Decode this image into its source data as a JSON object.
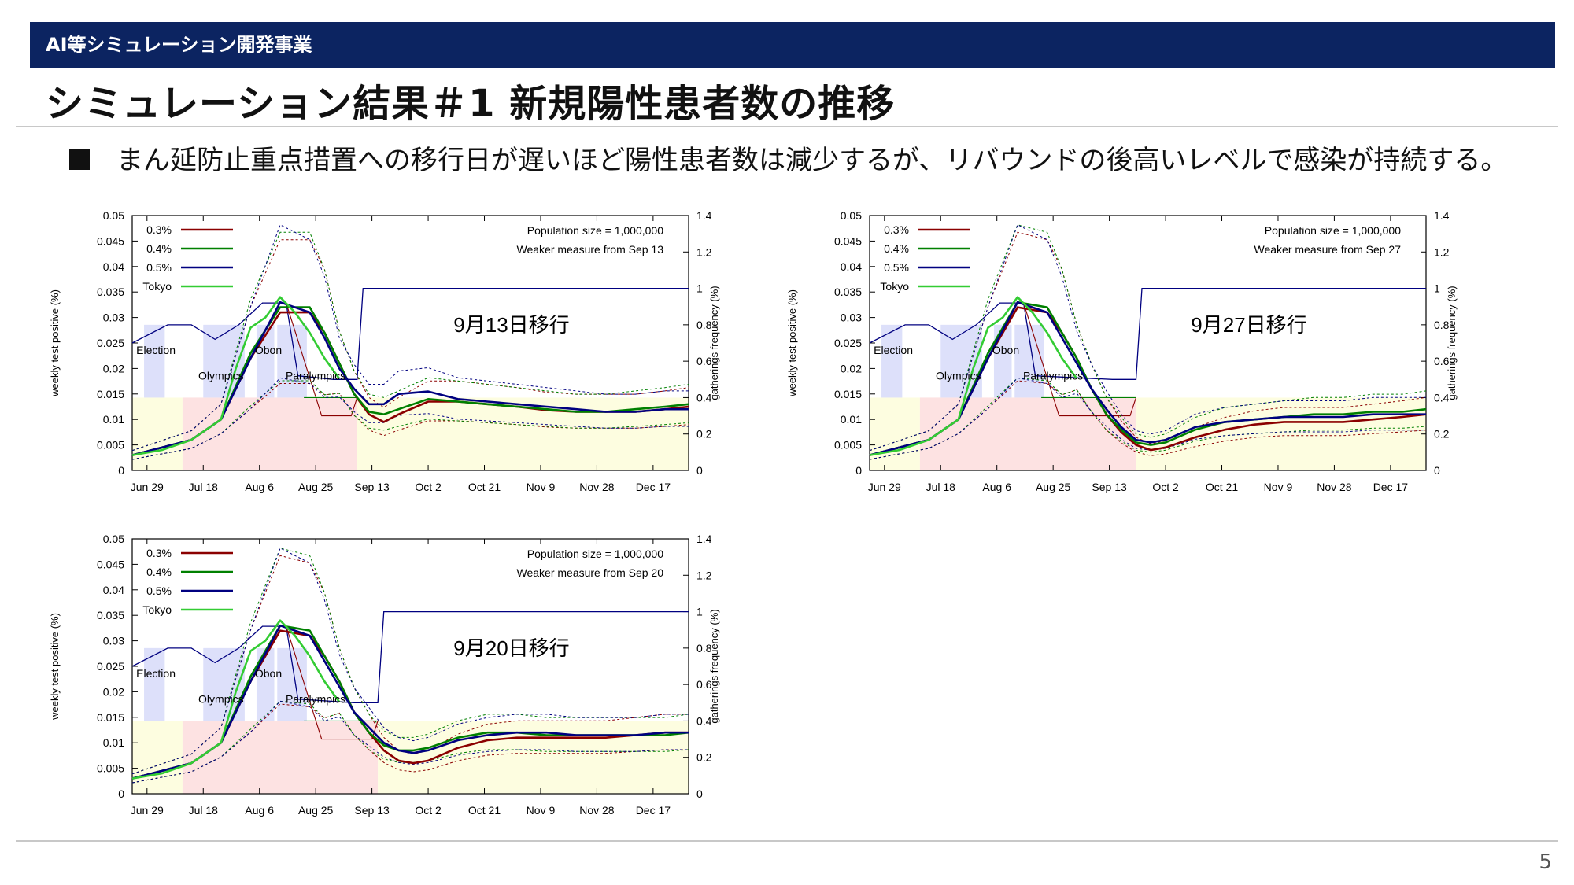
{
  "header": {
    "banner": "AI等シミュレーション開発事業",
    "title": "シミュレーション結果＃1 新規陽性患者数の推移",
    "bullet": "まん延防止重点措置への移行日が遅いほど陽性患者数は減少するが、リバウンドの後高いレベルで感染が持続する。"
  },
  "footer": {
    "page_number": "5"
  },
  "colors": {
    "banner_bg": "#0c2461",
    "s03": "#8b0000",
    "s04": "#008000",
    "s05": "#000080",
    "tokyo": "#33cc33",
    "event_band": "#dde0fa",
    "weak_band": "#fdfde0",
    "strong_band": "#fde2e2"
  },
  "chart_data": [
    {
      "type": "line",
      "annotation": "9月13日移行",
      "info_lines": [
        "Population size = 1,000,000",
        "Weaker measure from Sep 13"
      ],
      "ylabel": "weekly test positive (%)",
      "y2label": "gatherings frequency (%)",
      "x_ticks": [
        "Jun 29",
        "Jul 18",
        "Aug 6",
        "Aug 25",
        "Sep 13",
        "Oct 2",
        "Oct 21",
        "Nov 9",
        "Nov 28",
        "Dec 17"
      ],
      "ylim": [
        0,
        0.05
      ],
      "y_ticks": [
        "0",
        "0.005",
        "0.01",
        "0.015",
        "0.02",
        "0.025",
        "0.03",
        "0.035",
        "0.04",
        "0.045",
        "0.05"
      ],
      "y2lim": [
        0,
        1.4
      ],
      "y2_ticks": [
        "0",
        "0.2",
        "0.4",
        "0.6",
        "0.8",
        "1",
        "1.2",
        "1.4"
      ],
      "events": [
        "Election",
        "Olympics",
        "Obon",
        "Paralympics"
      ],
      "switch_day": 76,
      "series": [
        {
          "name": "0.3%",
          "x": [
            0,
            20,
            30,
            40,
            50,
            60,
            65,
            70,
            75,
            80,
            85,
            90,
            100,
            110,
            120,
            130,
            140,
            150,
            160,
            170,
            180,
            188
          ],
          "y": [
            0.003,
            0.006,
            0.01,
            0.022,
            0.031,
            0.031,
            0.027,
            0.021,
            0.015,
            0.011,
            0.0095,
            0.011,
            0.0135,
            0.0135,
            0.013,
            0.0125,
            0.0118,
            0.0115,
            0.0115,
            0.0115,
            0.012,
            0.0125
          ]
        },
        {
          "name": "0.4%",
          "x": [
            0,
            20,
            30,
            40,
            50,
            60,
            65,
            70,
            75,
            80,
            85,
            90,
            100,
            110,
            120,
            130,
            140,
            150,
            160,
            170,
            180,
            188
          ],
          "y": [
            0.003,
            0.006,
            0.01,
            0.023,
            0.032,
            0.032,
            0.027,
            0.021,
            0.015,
            0.0115,
            0.011,
            0.012,
            0.014,
            0.0135,
            0.013,
            0.0125,
            0.012,
            0.0115,
            0.0115,
            0.012,
            0.0125,
            0.013
          ]
        },
        {
          "name": "0.5%",
          "x": [
            0,
            20,
            30,
            40,
            50,
            60,
            65,
            70,
            75,
            80,
            85,
            90,
            100,
            110,
            120,
            130,
            140,
            150,
            160,
            170,
            180,
            188
          ],
          "y": [
            0.003,
            0.006,
            0.01,
            0.022,
            0.033,
            0.031,
            0.026,
            0.02,
            0.016,
            0.013,
            0.013,
            0.015,
            0.0155,
            0.014,
            0.0135,
            0.013,
            0.0125,
            0.012,
            0.0115,
            0.0115,
            0.012,
            0.012
          ]
        },
        {
          "name": "Tokyo",
          "x": [
            0,
            10,
            20,
            30,
            35,
            40,
            45,
            50,
            55,
            60,
            65,
            70
          ],
          "y": [
            0.003,
            0.004,
            0.006,
            0.01,
            0.02,
            0.028,
            0.03,
            0.034,
            0.031,
            0.027,
            0.022,
            0.018
          ]
        }
      ]
    },
    {
      "type": "line",
      "annotation": "9月27日移行",
      "info_lines": [
        "Population size = 1,000,000",
        "Weaker measure from Sep 27"
      ],
      "ylabel": "weekly test positive (%)",
      "y2label": "gatherings frequency (%)",
      "x_ticks": [
        "Jun 29",
        "Jul 18",
        "Aug 6",
        "Aug 25",
        "Sep 13",
        "Oct 2",
        "Oct 21",
        "Nov 9",
        "Nov 28",
        "Dec 17"
      ],
      "ylim": [
        0,
        0.05
      ],
      "y_ticks": [
        "0",
        "0.005",
        "0.01",
        "0.015",
        "0.02",
        "0.025",
        "0.03",
        "0.035",
        "0.04",
        "0.045",
        "0.05"
      ],
      "y2lim": [
        0,
        1.4
      ],
      "y2_ticks": [
        "0",
        "0.2",
        "0.4",
        "0.6",
        "0.8",
        "1",
        "1.2",
        "1.4"
      ],
      "events": [
        "Election",
        "Olympics",
        "Obon",
        "Paralympics"
      ],
      "switch_day": 90,
      "series": [
        {
          "name": "0.3%",
          "x": [
            0,
            20,
            30,
            40,
            50,
            60,
            65,
            70,
            75,
            80,
            85,
            90,
            95,
            100,
            110,
            120,
            130,
            140,
            150,
            160,
            170,
            180,
            188
          ],
          "y": [
            0.003,
            0.006,
            0.01,
            0.022,
            0.032,
            0.031,
            0.027,
            0.022,
            0.016,
            0.011,
            0.0075,
            0.005,
            0.004,
            0.0045,
            0.0065,
            0.008,
            0.009,
            0.0095,
            0.0095,
            0.0095,
            0.01,
            0.0105,
            0.011
          ]
        },
        {
          "name": "0.4%",
          "x": [
            0,
            20,
            30,
            40,
            50,
            60,
            65,
            70,
            75,
            80,
            85,
            90,
            95,
            100,
            110,
            120,
            130,
            140,
            150,
            160,
            170,
            180,
            188
          ],
          "y": [
            0.003,
            0.006,
            0.01,
            0.023,
            0.033,
            0.032,
            0.027,
            0.022,
            0.016,
            0.011,
            0.008,
            0.0055,
            0.005,
            0.0055,
            0.008,
            0.0095,
            0.01,
            0.0105,
            0.011,
            0.011,
            0.0115,
            0.0115,
            0.012
          ]
        },
        {
          "name": "0.5%",
          "x": [
            0,
            20,
            30,
            40,
            50,
            60,
            65,
            70,
            75,
            80,
            85,
            90,
            95,
            100,
            110,
            120,
            130,
            140,
            150,
            160,
            170,
            180,
            188
          ],
          "y": [
            0.003,
            0.006,
            0.01,
            0.022,
            0.033,
            0.031,
            0.026,
            0.021,
            0.016,
            0.012,
            0.0085,
            0.006,
            0.0055,
            0.006,
            0.0085,
            0.0095,
            0.01,
            0.0105,
            0.0105,
            0.0105,
            0.011,
            0.011,
            0.011
          ]
        },
        {
          "name": "Tokyo",
          "x": [
            0,
            10,
            20,
            30,
            35,
            40,
            45,
            50,
            55,
            60,
            65,
            70
          ],
          "y": [
            0.003,
            0.004,
            0.006,
            0.01,
            0.02,
            0.028,
            0.03,
            0.034,
            0.031,
            0.027,
            0.022,
            0.018
          ]
        }
      ]
    },
    {
      "type": "line",
      "annotation": "9月20日移行",
      "info_lines": [
        "Population size = 1,000,000",
        "Weaker measure from Sep 20"
      ],
      "ylabel": "weekly test positive (%)",
      "y2label": "gatherings frequency (%)",
      "x_ticks": [
        "Jun 29",
        "Jul 18",
        "Aug 6",
        "Aug 25",
        "Sep 13",
        "Oct 2",
        "Oct 21",
        "Nov 9",
        "Nov 28",
        "Dec 17"
      ],
      "ylim": [
        0,
        0.05
      ],
      "y_ticks": [
        "0",
        "0.005",
        "0.01",
        "0.015",
        "0.02",
        "0.025",
        "0.03",
        "0.035",
        "0.04",
        "0.045",
        "0.05"
      ],
      "y2lim": [
        0,
        1.4
      ],
      "y2_ticks": [
        "0",
        "0.2",
        "0.4",
        "0.6",
        "0.8",
        "1",
        "1.2",
        "1.4"
      ],
      "events": [
        "Election",
        "Olympics",
        "Obon",
        "Paralympics"
      ],
      "switch_day": 83,
      "series": [
        {
          "name": "0.3%",
          "x": [
            0,
            20,
            30,
            40,
            50,
            60,
            65,
            70,
            75,
            80,
            85,
            90,
            95,
            100,
            110,
            120,
            130,
            140,
            150,
            160,
            170,
            180,
            188
          ],
          "y": [
            0.003,
            0.006,
            0.01,
            0.022,
            0.032,
            0.031,
            0.027,
            0.022,
            0.016,
            0.012,
            0.0085,
            0.0065,
            0.006,
            0.0065,
            0.009,
            0.0105,
            0.011,
            0.011,
            0.011,
            0.011,
            0.0115,
            0.012,
            0.012
          ]
        },
        {
          "name": "0.4%",
          "x": [
            0,
            20,
            30,
            40,
            50,
            60,
            65,
            70,
            75,
            80,
            85,
            90,
            95,
            100,
            110,
            120,
            130,
            140,
            150,
            160,
            170,
            180,
            188
          ],
          "y": [
            0.003,
            0.006,
            0.01,
            0.023,
            0.033,
            0.032,
            0.027,
            0.022,
            0.016,
            0.012,
            0.0095,
            0.0085,
            0.0085,
            0.009,
            0.011,
            0.012,
            0.012,
            0.0115,
            0.0115,
            0.0115,
            0.0115,
            0.0115,
            0.012
          ]
        },
        {
          "name": "0.5%",
          "x": [
            0,
            20,
            30,
            40,
            50,
            60,
            65,
            70,
            75,
            80,
            85,
            90,
            95,
            100,
            110,
            120,
            130,
            140,
            150,
            160,
            170,
            180,
            188
          ],
          "y": [
            0.003,
            0.006,
            0.01,
            0.022,
            0.033,
            0.031,
            0.026,
            0.021,
            0.016,
            0.013,
            0.01,
            0.0085,
            0.008,
            0.0085,
            0.0105,
            0.0115,
            0.012,
            0.012,
            0.0115,
            0.0115,
            0.0115,
            0.012,
            0.012
          ]
        },
        {
          "name": "Tokyo",
          "x": [
            0,
            10,
            20,
            30,
            35,
            40,
            45,
            50,
            55,
            60,
            65,
            70
          ],
          "y": [
            0.003,
            0.004,
            0.006,
            0.01,
            0.02,
            0.028,
            0.03,
            0.034,
            0.031,
            0.027,
            0.022,
            0.018
          ]
        }
      ]
    }
  ]
}
